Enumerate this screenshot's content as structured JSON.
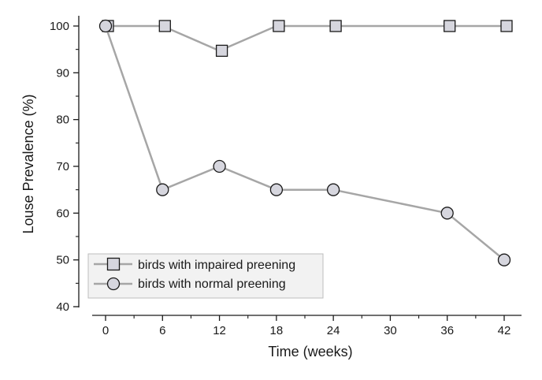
{
  "chart_data": {
    "type": "line",
    "title": "",
    "xlabel": "Time (weeks)",
    "ylabel": "Louse Prevalence (%)",
    "x": [
      0,
      6,
      12,
      18,
      24,
      36,
      42
    ],
    "xlim": [
      -3,
      44
    ],
    "ylim": [
      40,
      102
    ],
    "xticks": [
      0,
      6,
      12,
      18,
      24,
      30,
      36,
      42
    ],
    "yticks": [
      40,
      50,
      60,
      70,
      80,
      90,
      100
    ],
    "x_minor_ticks": [
      3,
      9,
      15,
      21,
      27,
      33,
      39
    ],
    "y_minor_ticks": [
      45,
      55,
      65,
      75,
      85,
      95
    ],
    "grid": false,
    "legend_position": "lower-left",
    "series": [
      {
        "name": "birds with impaired preening",
        "marker": "square",
        "line_color": "#a6a6a6",
        "marker_fill": "#d6d6de",
        "values": [
          100,
          100,
          94.7,
          100,
          100,
          100,
          100
        ]
      },
      {
        "name": "birds with normal preening",
        "marker": "circle",
        "line_color": "#a6a6a6",
        "marker_fill": "#d6d6de",
        "values": [
          100,
          65,
          70,
          65,
          65,
          60,
          50
        ]
      }
    ]
  }
}
